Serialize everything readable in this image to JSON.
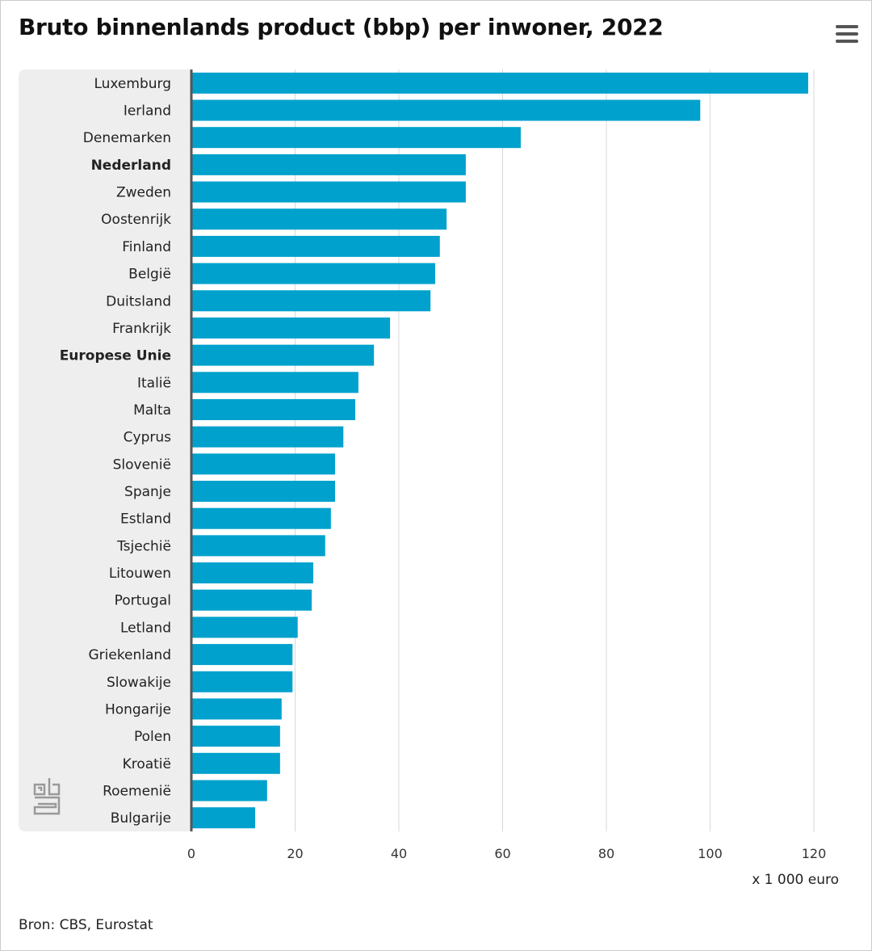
{
  "title": "Bruto binnenlands product (bbp) per inwoner, 2022",
  "menu_icon": "hamburger-menu-icon",
  "source": "Bron: CBS, Eurostat",
  "chart_data": {
    "type": "bar",
    "orientation": "horizontal",
    "title": "Bruto binnenlands product (bbp) per inwoner, 2022",
    "xlabel": "x 1 000 euro",
    "xlim": [
      0,
      120
    ],
    "xticks": [
      "0",
      "20",
      "40",
      "60",
      "80",
      "100",
      "120"
    ],
    "grid": true,
    "bar_color": "#00a1cd",
    "bold_categories": [
      "Nederland",
      "Europese Unie"
    ],
    "categories": [
      "Luxemburg",
      "Ierland",
      "Denemarken",
      "Nederland",
      "Zweden",
      "Oostenrijk",
      "Finland",
      "België",
      "Duitsland",
      "Frankrijk",
      "Europese Unie",
      "Italië",
      "Malta",
      "Cyprus",
      "Slovenië",
      "Spanje",
      "Estland",
      "Tsjechië",
      "Litouwen",
      "Portugal",
      "Letland",
      "Griekenland",
      "Slowakije",
      "Hongarije",
      "Polen",
      "Kroatië",
      "Roemenië",
      "Bulgarije"
    ],
    "values": [
      118.9,
      98.1,
      63.5,
      52.9,
      52.9,
      49.2,
      47.9,
      47.0,
      46.1,
      38.3,
      35.2,
      32.2,
      31.6,
      29.3,
      27.7,
      27.7,
      26.9,
      25.8,
      23.5,
      23.2,
      20.5,
      19.5,
      19.5,
      17.4,
      17.1,
      17.1,
      14.6,
      12.3
    ]
  }
}
